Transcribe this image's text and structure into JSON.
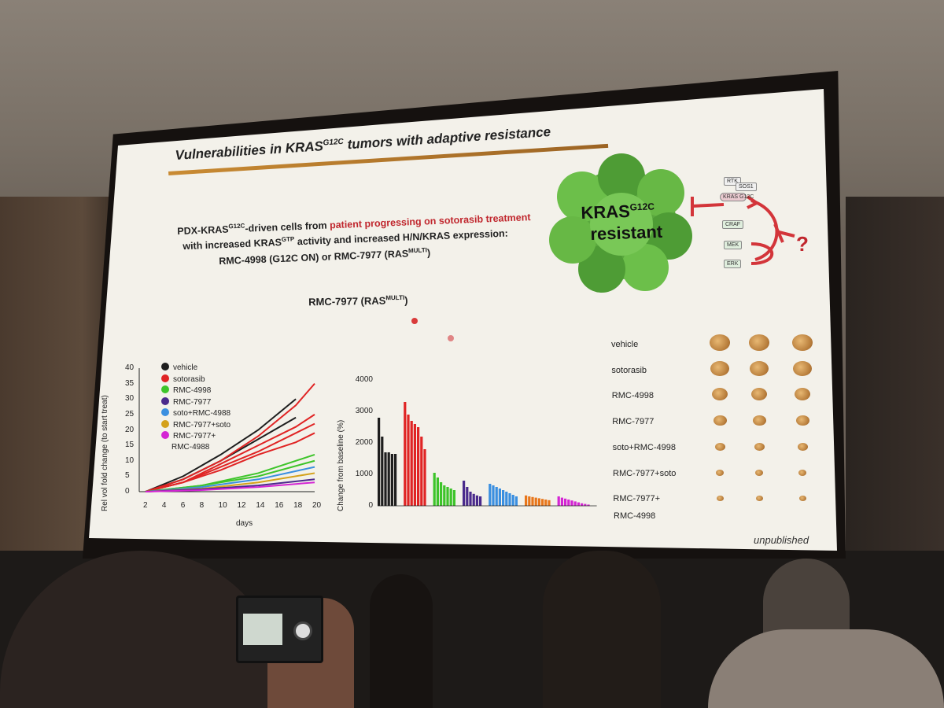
{
  "slide": {
    "title": "Vulnerabilities in KRAS",
    "title_sup": "G12C",
    "title_rest": " tumors with adaptive resistance",
    "desc_line1_a": "PDX-KRAS",
    "desc_line1_sup": "G12C",
    "desc_line1_b": "-driven cells from ",
    "desc_line1_red": "patient progressing on sotorasib treatment",
    "desc_line2_a": "with increased KRAS",
    "desc_line2_sup": "GTP",
    "desc_line2_b": " activity and increased H/N/KRAS expression:",
    "desc_line3": "RMC-4998 (G12C ON) or RMC-7977 (RAS",
    "desc_line3_sup": "MULTI",
    "desc_line3_end": ")",
    "section_title": "RMC-7977 (RAS",
    "section_title_sup": "MULTI",
    "section_title_end": ")",
    "tumor_label_a": "KRAS",
    "tumor_label_sup": "G12C",
    "tumor_label_b": "resistant",
    "pathway": [
      "RTK",
      "SOS1",
      "KRAS G12C",
      "CRAF",
      "MEK",
      "ERK"
    ],
    "question": "?",
    "footer": "unpublished"
  },
  "legend": [
    {
      "label": "vehicle",
      "color": "#1e1e1e"
    },
    {
      "label": "sotorasib",
      "color": "#e02424"
    },
    {
      "label": "RMC-4998",
      "color": "#3dc42a"
    },
    {
      "label": "RMC-7977",
      "color": "#4a2a8c"
    },
    {
      "label": "soto+RMC-4988",
      "color": "#3a8fe0"
    },
    {
      "label": "RMC-7977+soto",
      "color": "#d4a11a"
    },
    {
      "label": "RMC-7977+",
      "color": "#d425d4"
    }
  ],
  "legend_extra": "RMC-4988",
  "tumor_rows": [
    "vehicle",
    "sotorasib",
    "RMC-4998",
    "RMC-7977",
    "soto+RMC-4998",
    "RMC-7977+soto",
    "RMC-7977+"
  ],
  "tumor_rows_extra": "RMC-4998",
  "chart_data": [
    {
      "type": "line",
      "xlabel": "days",
      "ylabel": "Rel vol fold change (to start treat)",
      "xlim": [
        2,
        20
      ],
      "ylim": [
        0,
        40
      ],
      "xticks": [
        2,
        4,
        6,
        8,
        10,
        12,
        14,
        16,
        18,
        20
      ],
      "yticks": [
        0,
        5,
        10,
        15,
        20,
        25,
        30,
        35,
        40
      ],
      "series": [
        {
          "name": "vehicle",
          "color": "#1e1e1e",
          "x": [
            2,
            6,
            10,
            14,
            18
          ],
          "y": [
            0,
            5,
            12,
            20,
            30
          ]
        },
        {
          "name": "vehicle",
          "color": "#1e1e1e",
          "x": [
            2,
            6,
            10,
            14,
            18
          ],
          "y": [
            0,
            4,
            10,
            17,
            24
          ]
        },
        {
          "name": "sotorasib",
          "color": "#e02424",
          "x": [
            2,
            6,
            10,
            14,
            18,
            20
          ],
          "y": [
            0,
            4,
            10,
            18,
            28,
            35
          ]
        },
        {
          "name": "sotorasib",
          "color": "#e02424",
          "x": [
            2,
            6,
            10,
            14,
            18,
            20
          ],
          "y": [
            0,
            3,
            9,
            15,
            21,
            25
          ]
        },
        {
          "name": "sotorasib",
          "color": "#e02424",
          "x": [
            2,
            6,
            10,
            14,
            18,
            20
          ],
          "y": [
            0,
            3,
            8,
            13,
            19,
            22
          ]
        },
        {
          "name": "sotorasib",
          "color": "#e02424",
          "x": [
            2,
            6,
            10,
            14,
            18,
            20
          ],
          "y": [
            0,
            3,
            7,
            12,
            16,
            19
          ]
        },
        {
          "name": "RMC-4998",
          "color": "#3dc42a",
          "x": [
            2,
            8,
            14,
            20
          ],
          "y": [
            0,
            2,
            6,
            12
          ]
        },
        {
          "name": "RMC-4998",
          "color": "#3dc42a",
          "x": [
            2,
            8,
            14,
            20
          ],
          "y": [
            0,
            2,
            5,
            10
          ]
        },
        {
          "name": "soto+RMC-4988",
          "color": "#3a8fe0",
          "x": [
            2,
            8,
            14,
            20
          ],
          "y": [
            0,
            1.5,
            4,
            8
          ]
        },
        {
          "name": "RMC-7977+soto",
          "color": "#d4a11a",
          "x": [
            2,
            8,
            14,
            20
          ],
          "y": [
            0,
            1,
            3,
            6
          ]
        },
        {
          "name": "RMC-7977",
          "color": "#4a2a8c",
          "x": [
            2,
            8,
            14,
            20
          ],
          "y": [
            0,
            0.8,
            2,
            4
          ]
        },
        {
          "name": "RMC-7977+ RMC-4988",
          "color": "#d425d4",
          "x": [
            2,
            8,
            14,
            20
          ],
          "y": [
            0,
            0.5,
            1.5,
            3
          ]
        }
      ]
    },
    {
      "type": "bar",
      "ylabel": "Change from baseline (%)",
      "ylim": [
        0,
        4000
      ],
      "yticks": [
        0,
        1000,
        2000,
        3000,
        4000
      ],
      "groups": [
        {
          "name": "vehicle",
          "color": "#1e1e1e",
          "values": [
            2800,
            2200,
            1700,
            1700,
            1650,
            1650
          ]
        },
        {
          "name": "sotorasib",
          "color": "#e02424",
          "values": [
            3300,
            2900,
            2700,
            2600,
            2500,
            2200,
            1800
          ]
        },
        {
          "name": "RMC-4998",
          "color": "#3dc42a",
          "values": [
            1050,
            900,
            750,
            650,
            600,
            550,
            500
          ]
        },
        {
          "name": "RMC-7977",
          "color": "#4a2a8c",
          "values": [
            800,
            600,
            450,
            380,
            330,
            300
          ]
        },
        {
          "name": "soto+RMC-4988",
          "color": "#3a8fe0",
          "values": [
            700,
            650,
            600,
            550,
            500,
            450,
            400,
            350,
            300
          ]
        },
        {
          "name": "RMC-7977+soto",
          "color": "#e8761a",
          "values": [
            330,
            300,
            280,
            260,
            240,
            220,
            200,
            180
          ]
        },
        {
          "name": "RMC-7977+ RMC-4988",
          "color": "#d425d4",
          "values": [
            300,
            260,
            230,
            200,
            170,
            140,
            110,
            80,
            60,
            40
          ]
        }
      ]
    }
  ]
}
